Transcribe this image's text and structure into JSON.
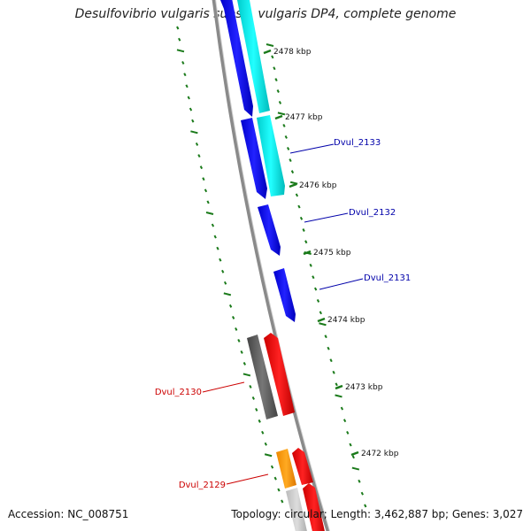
{
  "title": "Desulfovibrio vulgaris subsp. vulgaris DP4, complete genome",
  "footer": {
    "accession": "Accession: NC_008751",
    "summary": "Topology: circular; Length: 3,462,887 bp; Genes: 3,027"
  },
  "kbp_labels": [
    "2478 kbp",
    "2477 kbp",
    "2476 kbp",
    "2475 kbp",
    "2474 kbp",
    "2473 kbp",
    "2472 kbp"
  ],
  "genes": [
    {
      "label": "Dvul_2133",
      "color": "#0000aa"
    },
    {
      "label": "Dvul_2132",
      "color": "#0000aa"
    },
    {
      "label": "Dvul_2131",
      "color": "#0000aa"
    },
    {
      "label": "Dvul_2130",
      "color": "#cc0000"
    },
    {
      "label": "Dvul_2129",
      "color": "#cc0000"
    }
  ],
  "colors": {
    "forward_cds": "#0000ee",
    "forward_rna": "#00e5e5",
    "reverse_cds": "#ff0000",
    "reverse_other": "#666666",
    "orange": "#ff9900",
    "backbone": "#888888",
    "gc_ticks": "#1a7a1a"
  }
}
